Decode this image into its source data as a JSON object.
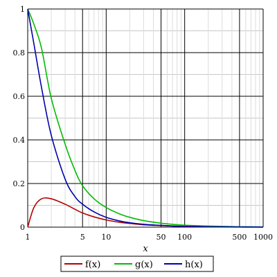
{
  "chart_data": {
    "type": "line",
    "xlabel": "x",
    "ylabel": "",
    "x_scale": "log",
    "xlim": [
      1,
      1000
    ],
    "ylim": [
      0,
      1
    ],
    "grid": true,
    "legend_position": "bottom",
    "x_ticks": [
      {
        "value": 1,
        "label": "1"
      },
      {
        "value": 5,
        "label": "5"
      },
      {
        "value": 10,
        "label": "10"
      },
      {
        "value": 50,
        "label": "50"
      },
      {
        "value": 100,
        "label": "100"
      },
      {
        "value": 500,
        "label": "500"
      },
      {
        "value": 1000,
        "label": "1000"
      }
    ],
    "y_ticks": [
      {
        "value": 0,
        "label": "0"
      },
      {
        "value": 0.2,
        "label": "0.2"
      },
      {
        "value": 0.4,
        "label": "0.4"
      },
      {
        "value": 0.6,
        "label": "0.6"
      },
      {
        "value": 0.8,
        "label": "0.8"
      },
      {
        "value": 1,
        "label": "1"
      }
    ],
    "series": [
      {
        "name": "f(x)",
        "color": "#b30000",
        "x": [
          1,
          1.2,
          1.5,
          2,
          3,
          4,
          5,
          7,
          10,
          15,
          20,
          30,
          50,
          70,
          100,
          200,
          500,
          1000
        ],
        "y": [
          0,
          0.09,
          0.13,
          0.13,
          0.105,
          0.082,
          0.065,
          0.047,
          0.033,
          0.022,
          0.017,
          0.011,
          0.007,
          0.005,
          0.003,
          0.0015,
          0.0006,
          0.0003
        ]
      },
      {
        "name": "g(x)",
        "color": "#00bb00",
        "x": [
          1,
          1.2,
          1.5,
          2,
          3,
          4,
          5,
          7,
          10,
          15,
          20,
          30,
          50,
          70,
          100,
          200,
          500,
          1000
        ],
        "y": [
          1,
          0.93,
          0.82,
          0.59,
          0.38,
          0.26,
          0.19,
          0.13,
          0.09,
          0.06,
          0.045,
          0.03,
          0.018,
          0.013,
          0.009,
          0.005,
          0.002,
          0.001
        ]
      },
      {
        "name": "h(x)",
        "color": "#0000aa",
        "x": [
          1,
          1.2,
          1.5,
          2,
          3,
          4,
          5,
          7,
          10,
          15,
          20,
          30,
          50,
          70,
          100,
          200,
          500,
          1000
        ],
        "y": [
          1,
          0.84,
          0.64,
          0.42,
          0.22,
          0.14,
          0.105,
          0.07,
          0.045,
          0.028,
          0.02,
          0.013,
          0.008,
          0.0055,
          0.004,
          0.002,
          0.0008,
          0.0004
        ]
      }
    ]
  }
}
